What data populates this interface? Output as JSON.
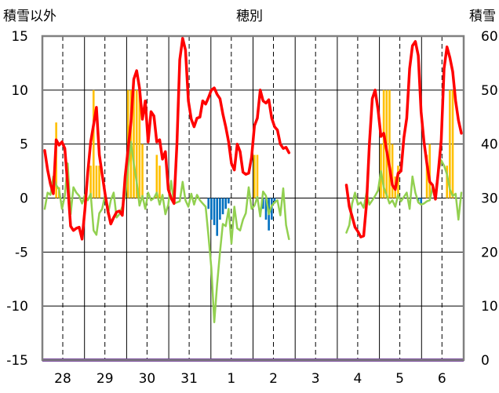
{
  "chart_data": {
    "type": "line",
    "title": "穂別",
    "left_axis_label": "積雪以外",
    "right_axis_label": "積雪",
    "ylim_left": [
      -15,
      15
    ],
    "ylim_right": [
      0,
      60
    ],
    "yticks_left": [
      "15",
      "10",
      "5",
      "0",
      "-5",
      "-10",
      "-15"
    ],
    "yticks_right": [
      "60",
      "50",
      "40",
      "30",
      "20",
      "10",
      "0"
    ],
    "day_labels": [
      "28",
      "29",
      "30",
      "31",
      "1",
      "2",
      "3",
      "4",
      "5",
      "6"
    ],
    "colors": {
      "temperature": "#ff0000",
      "green_series": "#92d050",
      "precip_pos": "#ffc000",
      "precip_neg": "#0070c0",
      "snow_depth": "#7030a0",
      "grid": "#000000",
      "frame": "#808080"
    },
    "series": [
      {
        "name": "temperature",
        "axis": "left",
        "values": [
          4.4,
          2.6,
          1.3,
          0.4,
          5.4,
          4.9,
          5.2,
          4.6,
          1.2,
          -2.6,
          -3,
          -2.8,
          -2.7,
          -3.8,
          -1,
          2.4,
          5.2,
          6.8,
          8.4,
          4,
          2.2,
          0.4,
          -1.2,
          -2.4,
          -1.8,
          -1.3,
          -1.2,
          -1.6,
          2,
          4.5,
          7,
          11,
          11.8,
          10.2,
          7.3,
          9,
          5.2,
          8,
          7.6,
          5.2,
          5.4,
          3.6,
          4.3,
          0.8,
          0,
          -0.5,
          5,
          12.8,
          14.8,
          13.7,
          9,
          7.3,
          6.6,
          7.4,
          7.5,
          9,
          8.7,
          9.3,
          10,
          10.2,
          9.6,
          9.2,
          7.8,
          6.6,
          5.2,
          3.2,
          2.6,
          5,
          4.3,
          2.4,
          2.2,
          2.3,
          3.8,
          6.7,
          7.4,
          10,
          9,
          8.8,
          9.1,
          7.4,
          6.6,
          6.3,
          5,
          4.6,
          4.7,
          4.2,
          null,
          null,
          null,
          null,
          null,
          null,
          null,
          null,
          null,
          null,
          null,
          null,
          null,
          null,
          null,
          null,
          null,
          null,
          null,
          1.2,
          -0.8,
          -1.7,
          -2.7,
          -3.1,
          -3.6,
          -3.5,
          -0.5,
          5,
          9.2,
          10,
          8.2,
          5.7,
          6,
          4.4,
          2.9,
          1.2,
          0.8,
          2.3,
          2.5,
          5.6,
          7.4,
          12,
          14.1,
          14.5,
          13.2,
          8,
          5.2,
          3.2,
          1.5,
          1.2,
          -0.1,
          2.5,
          5.4,
          12,
          14,
          13,
          11.7,
          9,
          7.2,
          6
        ]
      },
      {
        "name": "green_series",
        "axis": "left",
        "values": [
          -1,
          0.5,
          0.3,
          2,
          1.2,
          0.8,
          -1,
          0.2,
          3.2,
          -1.5,
          1,
          0.5,
          0.2,
          -0.5,
          0.3,
          -0.2,
          0.4,
          -3,
          -3.4,
          -1.4,
          -1,
          0.3,
          -1.5,
          -0.2,
          0.5,
          -1.8,
          -1.5,
          -0.8,
          0.2,
          2.8,
          5.2,
          3.2,
          1.5,
          -0.7,
          0.2,
          -1,
          0.5,
          -0.2,
          0,
          0.5,
          -0.6,
          0.3,
          -1.5,
          -0.6,
          1.6,
          -0.5,
          -0.4,
          -0.3,
          1.5,
          -0.2,
          -0.8,
          0.4,
          -0.6,
          0.3,
          -0.2,
          -0.5,
          -0.8,
          -3.5,
          -6.5,
          -11.5,
          -8,
          -5,
          -2.4,
          -2.6,
          -1,
          -4.2,
          -0.8,
          -2.8,
          -3,
          -2,
          -1.4,
          1,
          -1,
          -0.7,
          0.1,
          -1.7,
          0.6,
          0.2,
          -1.5,
          -0.7,
          -0.4,
          -0.2,
          -1.6,
          0.9,
          -2.5,
          -3.8,
          null,
          null,
          null,
          null,
          null,
          null,
          null,
          null,
          null,
          null,
          null,
          null,
          null,
          null,
          null,
          null,
          null,
          null,
          null,
          -3.2,
          -2.5,
          -0.5,
          0.5,
          -0.6,
          -0.4,
          -0.9,
          0.5,
          -0.6,
          -0.2,
          0.2,
          0.7,
          2.5,
          1,
          0.3,
          -0.5,
          -0.2,
          -0.8,
          0.3,
          -0.3,
          0.1,
          0.5,
          -1,
          2,
          0.5,
          -0.4,
          -0.6,
          -0.5,
          -0.3,
          -0.2,
          1,
          0.5,
          2.5,
          3.5,
          3,
          2.2,
          0.8,
          0.2,
          0.4,
          -2,
          0.5
        ]
      }
    ],
    "bars": [
      {
        "axis": "left",
        "values": [
          0,
          0,
          0,
          0,
          0,
          0,
          0,
          0,
          0,
          0,
          0,
          0,
          0,
          0,
          0,
          0,
          0,
          0,
          0,
          0,
          0,
          0,
          0,
          0,
          0,
          0,
          0,
          0,
          0,
          0,
          0,
          0,
          0,
          0,
          0,
          0,
          0,
          0,
          0,
          0,
          0,
          0,
          0,
          0,
          0,
          0,
          0,
          0,
          0,
          0,
          0,
          0,
          0,
          0,
          0,
          0,
          0,
          0,
          0,
          0,
          0,
          0,
          0,
          0,
          0,
          0,
          0,
          0,
          0,
          0,
          0,
          0,
          0,
          0,
          0,
          0,
          0,
          0,
          0,
          0,
          0,
          0,
          0,
          0,
          0,
          0,
          0,
          0,
          0,
          0,
          0,
          0,
          0,
          0,
          0,
          0,
          0,
          0,
          0,
          0,
          0,
          0,
          0,
          0,
          0,
          0,
          0,
          0,
          0,
          0,
          0,
          0,
          0,
          0,
          0,
          0,
          0,
          0,
          0,
          0,
          0,
          0,
          0,
          0,
          0,
          0,
          0,
          0,
          0,
          0,
          0,
          0,
          0,
          0,
          0,
          0,
          0,
          0,
          0,
          0,
          0,
          0,
          0,
          0,
          0,
          0,
          0
        ]
      }
    ],
    "precip_pos": [
      0,
      0,
      0,
      0,
      7,
      1,
      0,
      0,
      0,
      0,
      0,
      0,
      0,
      0,
      0,
      0,
      3,
      10,
      3,
      3,
      0,
      0,
      0,
      0,
      0,
      0,
      0,
      0,
      0,
      10,
      10,
      10,
      10,
      10,
      5,
      0,
      0,
      0,
      0,
      4,
      3,
      0,
      0,
      0,
      0,
      0,
      0,
      0,
      0,
      0,
      0,
      0,
      0,
      0,
      0,
      0,
      0,
      0,
      0,
      0,
      0,
      0,
      0,
      0,
      0,
      0,
      0,
      0,
      0,
      0,
      0,
      0,
      0,
      4,
      4,
      0,
      0,
      0,
      0,
      0,
      0,
      0,
      0,
      0,
      0,
      0,
      0,
      0,
      0,
      0,
      0,
      0,
      0,
      0,
      0,
      0,
      0,
      0,
      0,
      0,
      0,
      0,
      0,
      0,
      0,
      0,
      0,
      0,
      0,
      0,
      0,
      0,
      0,
      0,
      0,
      0,
      0,
      5,
      10,
      10,
      10,
      5,
      2,
      3,
      0,
      0,
      0,
      0,
      0,
      0,
      0,
      0,
      0,
      4,
      5,
      0,
      0,
      0,
      0,
      0,
      3,
      10,
      10,
      0,
      0,
      0,
      0,
      0,
      0
    ],
    "precip_neg": [
      0,
      0,
      0,
      0,
      0,
      0,
      0,
      0,
      0,
      0,
      0,
      0,
      0,
      0,
      0,
      0,
      0,
      0,
      0,
      0,
      0,
      0,
      0,
      0,
      0,
      0,
      0,
      0,
      0,
      0,
      0,
      0,
      0,
      0,
      0,
      0,
      0,
      0,
      0,
      0,
      0,
      0,
      0,
      0,
      0,
      0,
      0,
      0,
      0,
      0,
      0,
      0,
      0,
      0,
      0,
      0,
      0,
      -1,
      -2,
      -2.5,
      -3.5,
      -2,
      -1.5,
      -1,
      -0.5,
      0,
      0,
      0,
      0,
      0,
      0,
      0,
      0,
      0,
      0,
      0,
      -1,
      -2,
      -3,
      -2,
      -0.5,
      0,
      0,
      0,
      0,
      0,
      0,
      0,
      0,
      0,
      0,
      0,
      0,
      0,
      0,
      0,
      0,
      0,
      0,
      0,
      0,
      0,
      0,
      0,
      0,
      0,
      0,
      0,
      0,
      0,
      0,
      0,
      0,
      0,
      0,
      0,
      0,
      0,
      0,
      0,
      0,
      0,
      0,
      0,
      0,
      0,
      0,
      0,
      0,
      0,
      -0.3,
      -0.5,
      0,
      0,
      0,
      0,
      0,
      0,
      0,
      0,
      0,
      0,
      0,
      0,
      0,
      0,
      0,
      0
    ],
    "snow_depth": {
      "axis": "right",
      "values": [
        0,
        0
      ]
    }
  }
}
